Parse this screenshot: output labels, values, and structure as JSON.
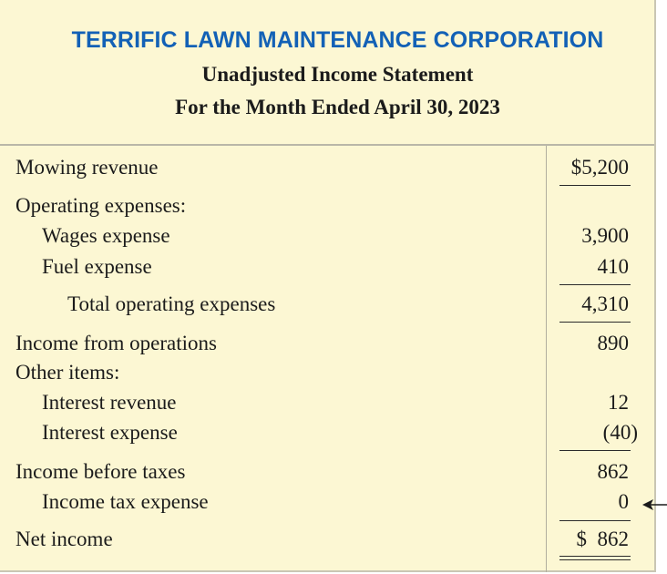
{
  "header": {
    "company": "TERRIFIC LAWN MAINTENANCE CORPORATION",
    "statement": "Unadjusted Income Statement",
    "period": "For the Month Ended April 30, 2023"
  },
  "rows": {
    "mowing_revenue": {
      "label": "Mowing revenue",
      "amount": "$5,200"
    },
    "operating_expenses": {
      "label": "Operating expenses:"
    },
    "wages_expense": {
      "label": "Wages expense",
      "amount": "3,900"
    },
    "fuel_expense": {
      "label": "Fuel expense",
      "amount": "410"
    },
    "total_operating_expenses": {
      "label": "Total operating expenses",
      "amount": "4,310"
    },
    "income_from_operations": {
      "label": "Income from operations",
      "amount": "890"
    },
    "other_items": {
      "label": "Other items:"
    },
    "interest_revenue": {
      "label": "Interest revenue",
      "amount": "12"
    },
    "interest_expense": {
      "label": "Interest expense",
      "amount": "(40)"
    },
    "income_before_taxes": {
      "label": "Income before taxes",
      "amount": "862"
    },
    "income_tax_expense": {
      "label": "Income tax expense",
      "amount": "0"
    },
    "net_income": {
      "label": "Net income",
      "amount": "$  862"
    }
  },
  "colors": {
    "panel_background": "#fcf7d3",
    "company_title": "#1361b6",
    "text": "#1b1b1b"
  },
  "icons": {
    "pointer": "left-arrow-icon"
  }
}
